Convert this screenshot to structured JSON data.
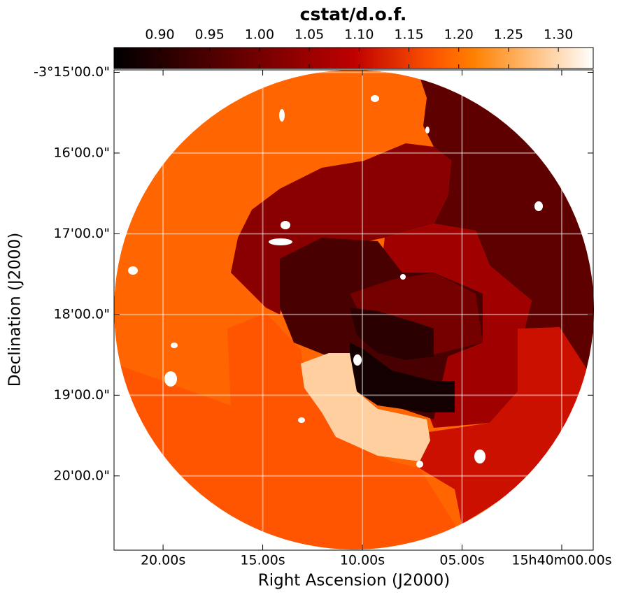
{
  "chart_data": {
    "type": "map",
    "title": "cstat/d.o.f.",
    "xlabel": "Right Ascension (J2000)",
    "ylabel": "Declination (J2000)",
    "xlim": [
      22.46,
      -1.58
    ],
    "xticks": [
      {
        "value": 20,
        "label": "20.00s"
      },
      {
        "value": 15,
        "label": "15.00s"
      },
      {
        "value": 10,
        "label": "10.00s"
      },
      {
        "value": 5,
        "label": "05.00s"
      },
      {
        "value": 0,
        "label": "15h40m00.00s"
      }
    ],
    "ylim": [
      -194.97,
      -200.92
    ],
    "yticks": [
      {
        "value": -195,
        "label": "-3°15'00.0\""
      },
      {
        "value": -196,
        "label": "16'00.0\""
      },
      {
        "value": -197,
        "label": "17'00.0\""
      },
      {
        "value": -198,
        "label": "18'00.0\""
      },
      {
        "value": -199,
        "label": "19'00.0\""
      },
      {
        "value": -200,
        "label": "20'00.0\""
      }
    ],
    "grid": true,
    "colormap": "gist_heat",
    "clim": [
      0.854,
      1.335
    ],
    "cticks": [
      {
        "value": 0.9,
        "label": "0.90"
      },
      {
        "value": 0.95,
        "label": "0.95"
      },
      {
        "value": 1.0,
        "label": "1.00"
      },
      {
        "value": 1.05,
        "label": "1.05"
      },
      {
        "value": 1.1,
        "label": "1.10"
      },
      {
        "value": 1.15,
        "label": "1.15"
      },
      {
        "value": 1.2,
        "label": "1.20"
      },
      {
        "value": 1.25,
        "label": "1.25"
      },
      {
        "value": 1.3,
        "label": "1.30"
      }
    ],
    "values": [
      1.19,
      1.175,
      0.974,
      1.027,
      1.055,
      1.11,
      0.946,
      1.0,
      0.907,
      0.88,
      1.29
    ]
  }
}
